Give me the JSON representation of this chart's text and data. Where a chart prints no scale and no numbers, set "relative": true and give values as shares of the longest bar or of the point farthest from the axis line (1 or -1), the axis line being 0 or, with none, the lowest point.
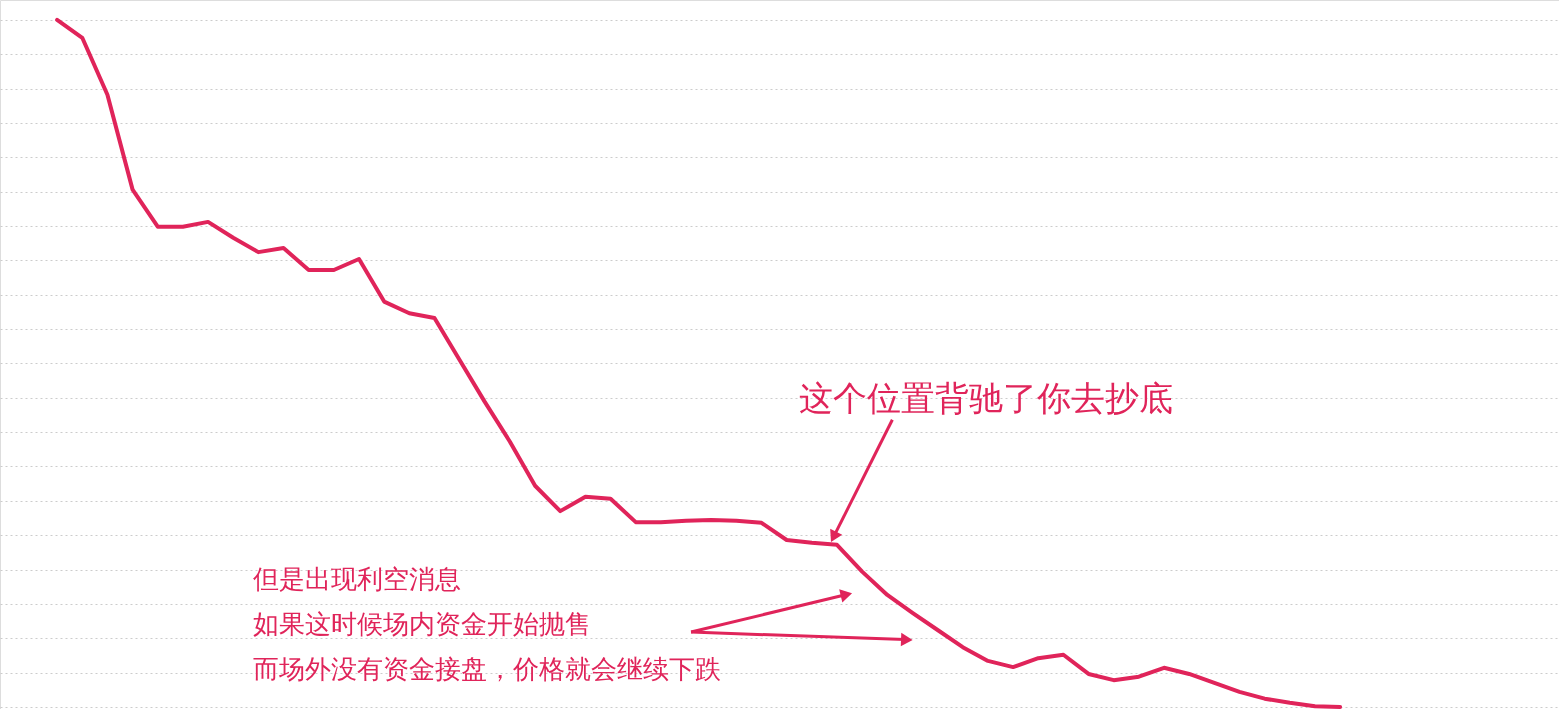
{
  "chart_data": {
    "type": "line",
    "relative": true,
    "grid": "y",
    "line_style": "solid",
    "marker": "none",
    "categories": [
      null,
      null,
      null,
      null,
      null,
      null,
      null,
      null,
      null,
      null,
      null,
      null,
      null,
      null,
      null,
      null,
      null,
      null,
      null,
      null,
      null,
      null,
      null,
      null,
      null,
      null,
      null,
      null,
      null,
      null,
      null,
      null,
      null,
      null,
      null,
      null,
      null,
      null,
      null,
      null,
      null,
      null,
      null,
      null,
      null,
      null,
      null,
      null,
      null,
      null,
      null,
      null
    ],
    "series": [
      {
        "color": "#e0245a",
        "values": [
          1.0,
          0.974,
          0.891,
          0.753,
          0.699,
          0.699,
          0.706,
          0.683,
          0.662,
          0.668,
          0.636,
          0.636,
          0.652,
          0.59,
          0.573,
          0.566,
          0.505,
          0.444,
          0.386,
          0.322,
          0.285,
          0.306,
          0.303,
          0.269,
          0.269,
          0.271,
          0.272,
          0.271,
          0.268,
          0.243,
          0.239,
          0.236,
          0.197,
          0.163,
          0.137,
          0.112,
          0.087,
          0.067,
          0.058,
          0.071,
          0.076,
          0.048,
          0.039,
          0.044,
          0.057,
          0.048,
          0.035,
          0.022,
          0.012,
          0.006,
          0.001,
          0.0
        ]
      }
    ],
    "annotations": [
      "这个位置背驰了你去抄底",
      "但是出现利空消息",
      "如果这时候场内资金开始抛售",
      "而场外没有资金接盘，价格就会继续下跌"
    ]
  }
}
